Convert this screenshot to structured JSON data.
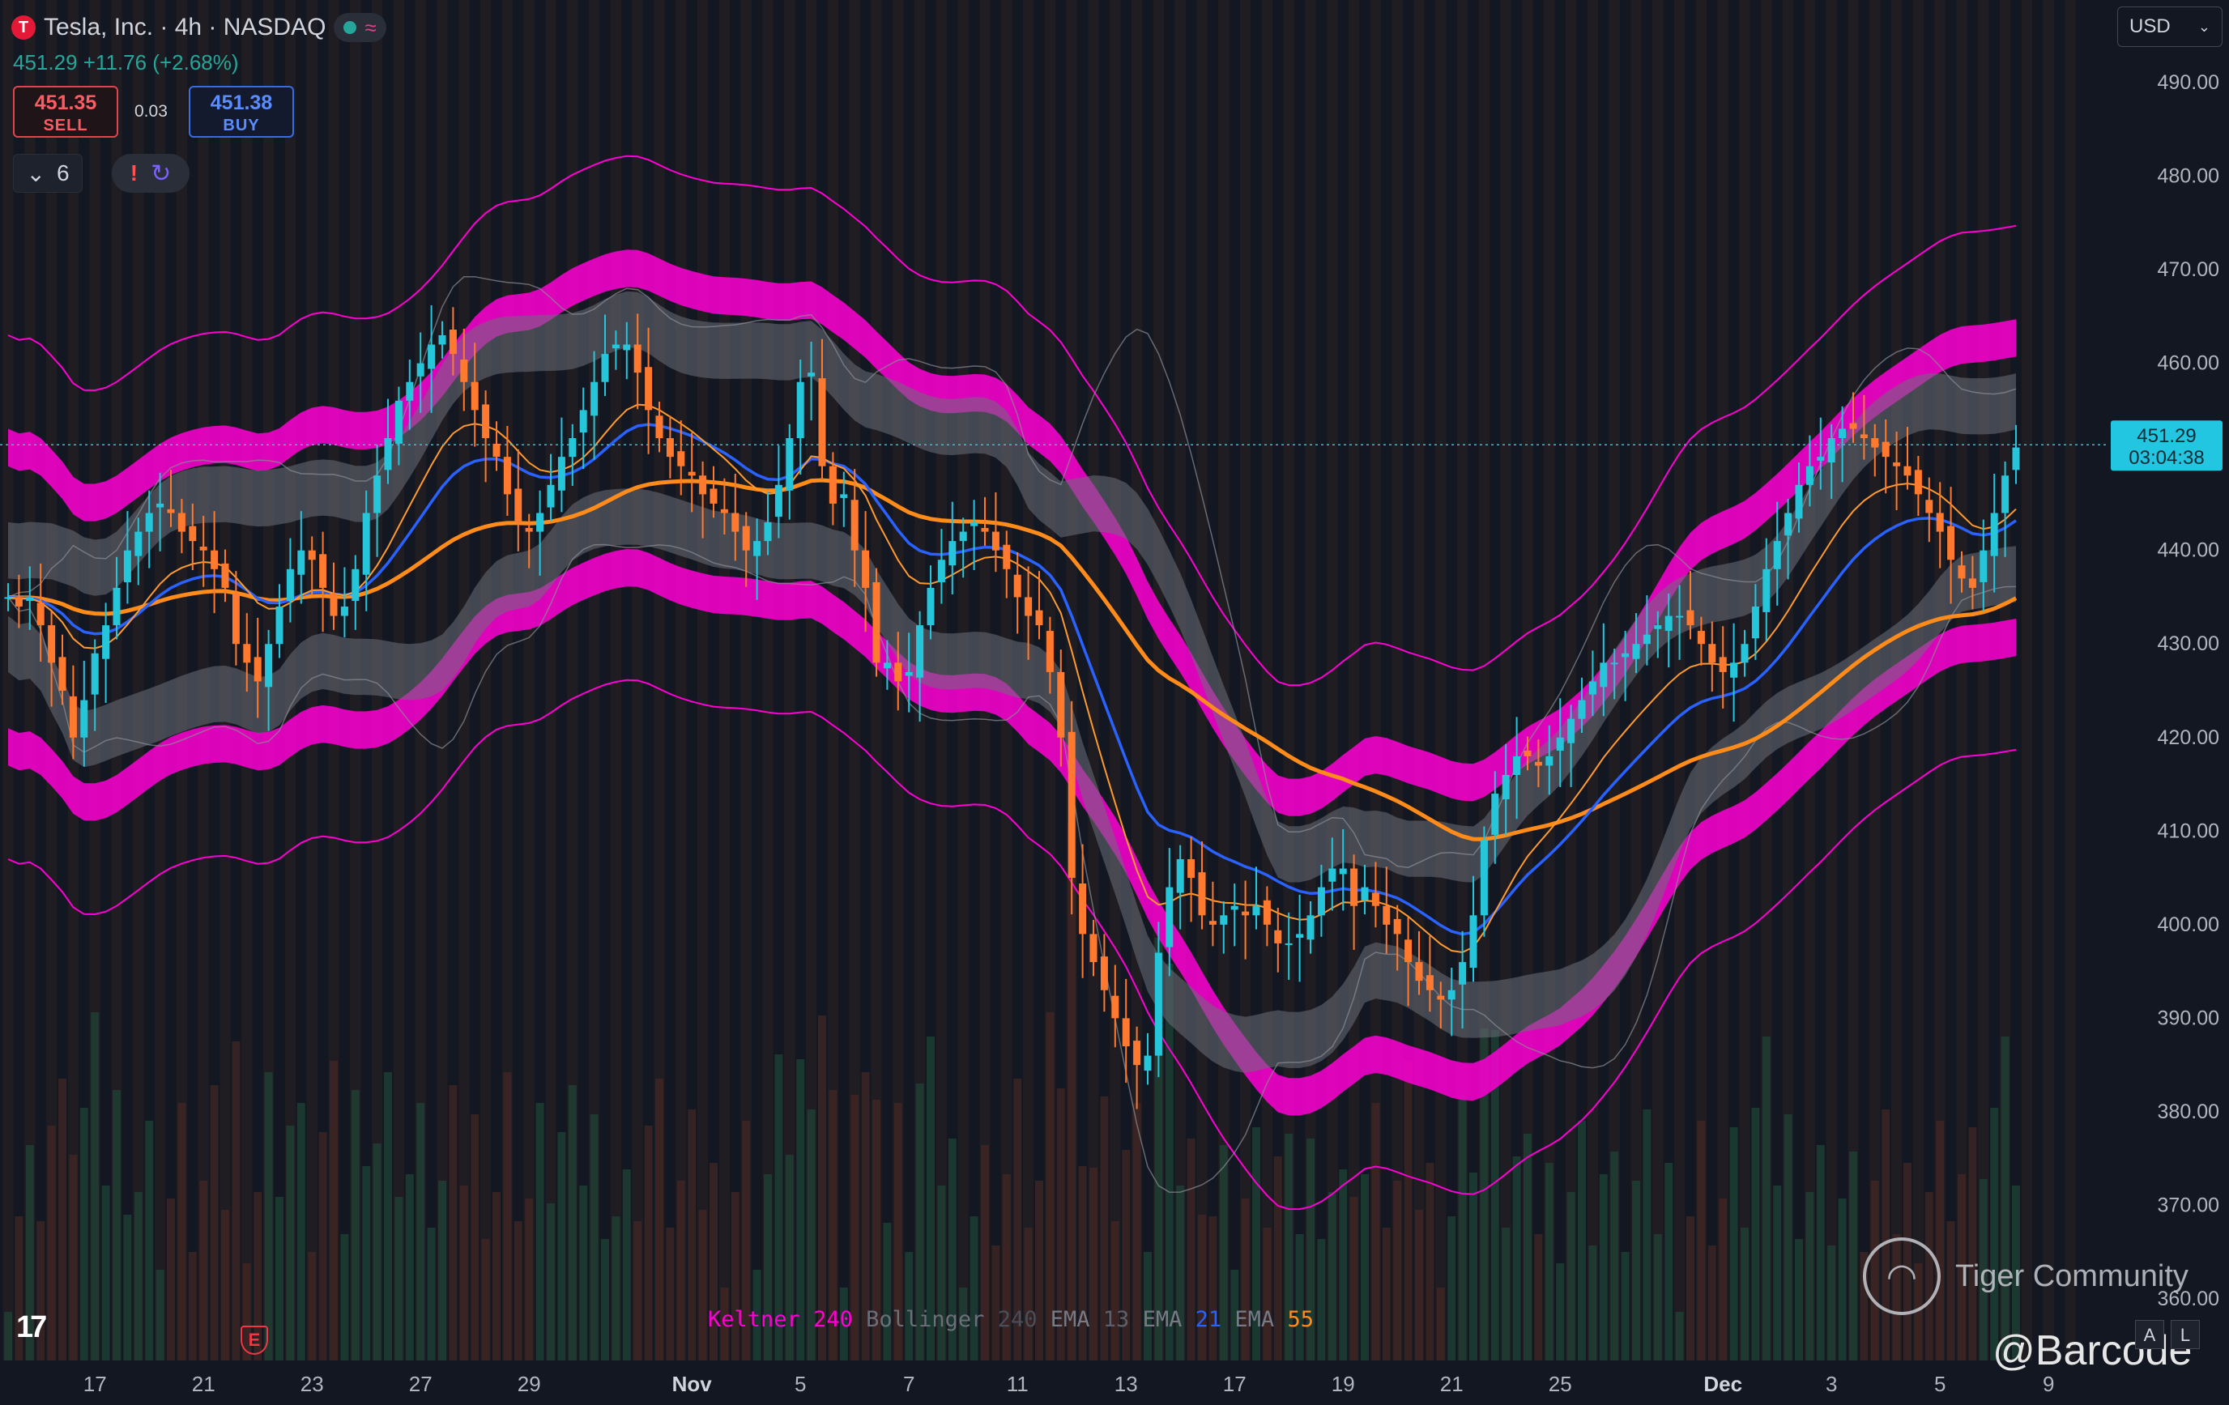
{
  "header": {
    "logo_text": "T",
    "title": "Tesla, Inc. · 4h · NASDAQ",
    "status_icon": "market-open-dot-icon",
    "indicator_icon": "wave-icon",
    "price_line": "451.29 +11.76 (+2.68%)"
  },
  "trade": {
    "sell_price": "451.35",
    "sell_label": "SELL",
    "spread": "0.03",
    "buy_price": "451.38",
    "buy_label": "BUY"
  },
  "controls": {
    "indicator_count": "6",
    "collapse_icon": "chevron-down-icon",
    "alert_icon": "exclamation-icon",
    "sync_icon": "sync-icon"
  },
  "currency": {
    "label": "USD",
    "icon": "chevron-down-icon"
  },
  "legend": {
    "keltner_label": "Keltner",
    "keltner_len": "240",
    "bollinger_label": "Bollinger",
    "bollinger_len": "240",
    "ema1_label": "EMA",
    "ema1_len": "13",
    "ema2_label": "EMA",
    "ema2_len": "21",
    "ema3_label": "EMA",
    "ema3_len": "55"
  },
  "colors": {
    "background": "#131722",
    "up": "#26c6da",
    "down": "#ff7a2e",
    "keltner": "#ff00d4",
    "bollinger": "#6b6f7a",
    "ema13": "#ff9a2e",
    "ema21": "#2962ff",
    "ema55": "#ff8c1a",
    "last_price_bg": "#22c6e0"
  },
  "chart_data": {
    "type": "candlestick",
    "title": "Tesla, Inc. · 4h · NASDAQ",
    "ylim": [
      360,
      490
    ],
    "y_ticks": [
      "490.00",
      "480.00",
      "470.00",
      "460.00",
      "450.00",
      "440.00",
      "430.00",
      "420.00",
      "410.00",
      "400.00",
      "390.00",
      "380.00",
      "370.00",
      "360.00"
    ],
    "x_ticks": [
      {
        "label": "17",
        "i": 8
      },
      {
        "label": "21",
        "i": 18
      },
      {
        "label": "23",
        "i": 28
      },
      {
        "label": "27",
        "i": 38
      },
      {
        "label": "29",
        "i": 48
      },
      {
        "label": "Nov",
        "i": 63
      },
      {
        "label": "5",
        "i": 73
      },
      {
        "label": "7",
        "i": 83
      },
      {
        "label": "11",
        "i": 93
      },
      {
        "label": "13",
        "i": 103
      },
      {
        "label": "17",
        "i": 113
      },
      {
        "label": "19",
        "i": 123
      },
      {
        "label": "21",
        "i": 133
      },
      {
        "label": "25",
        "i": 143
      },
      {
        "label": "Dec",
        "i": 158
      },
      {
        "label": "3",
        "i": 168
      },
      {
        "label": "5",
        "i": 178
      },
      {
        "label": "9",
        "i": 188
      }
    ],
    "close": [
      435,
      434,
      435,
      432,
      428,
      425,
      420,
      424,
      429,
      432,
      436,
      440,
      442,
      444,
      445,
      444,
      442,
      441,
      440,
      438,
      436,
      430,
      428,
      426,
      430,
      434,
      438,
      440,
      439,
      436,
      433,
      434,
      438,
      444,
      448,
      452,
      456,
      458,
      460,
      462,
      463,
      461,
      458,
      455,
      452,
      450,
      446,
      443,
      442,
      444,
      447,
      450,
      452,
      455,
      458,
      461,
      462,
      462,
      459,
      455,
      452,
      450,
      449,
      448,
      446,
      445,
      444,
      442,
      440,
      441,
      443,
      447,
      452,
      458,
      459,
      449,
      445,
      446,
      440,
      436,
      428,
      428,
      426,
      427,
      432,
      436,
      439,
      441,
      442,
      443,
      442,
      440,
      438,
      435,
      433,
      432,
      427,
      420,
      405,
      399,
      396,
      393,
      390,
      387,
      385,
      386,
      397,
      404,
      407,
      405,
      401,
      400,
      401,
      402,
      401,
      402,
      400,
      398,
      398,
      399,
      401,
      404,
      406,
      406,
      402,
      404,
      402,
      400,
      399,
      396,
      394,
      393,
      392,
      393,
      396,
      401,
      409,
      414,
      416,
      418,
      418,
      417,
      418,
      420,
      422,
      424,
      426,
      428,
      428,
      429,
      430,
      431,
      432,
      433,
      433,
      432,
      430,
      428,
      427,
      428,
      430,
      434,
      438,
      441,
      444,
      447,
      449,
      450,
      452,
      453,
      453,
      452,
      451,
      450,
      449,
      448,
      446,
      444,
      442,
      439,
      437,
      436,
      440,
      444,
      448,
      451
    ],
    "last_price": "451.29",
    "countdown": "03:04:38",
    "indicators": [
      "Keltner 240",
      "Bollinger 240",
      "EMA 13",
      "EMA 21",
      "EMA 55"
    ]
  },
  "watermark": {
    "brand": "Tiger Community",
    "brand_icon": "tiger-logo-icon",
    "handle": "@Barcode"
  },
  "misc": {
    "tv_logo": "17",
    "earnings_badge": "E",
    "auto_label": "A",
    "log_label": "L"
  }
}
